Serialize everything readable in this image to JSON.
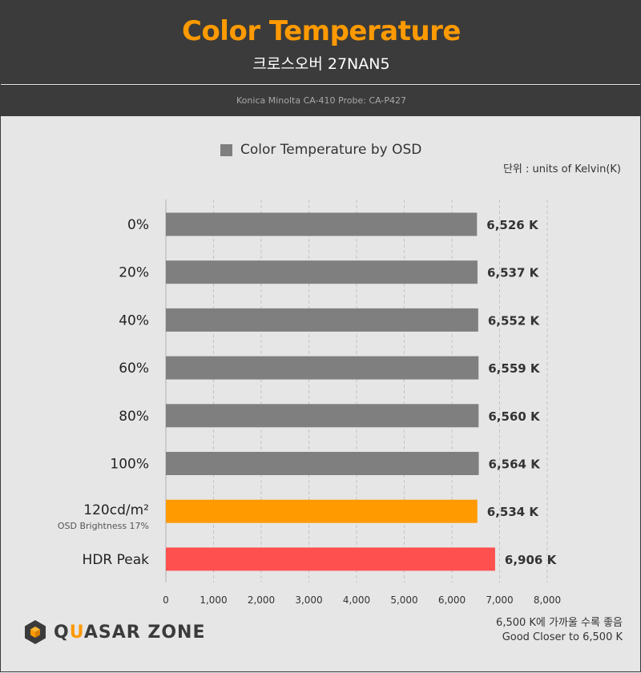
{
  "header": {
    "title": "Color Temperature",
    "subtitle": "크로스오버 27NAN5",
    "probe": "Konica Minolta CA-410 Probe: CA-P427"
  },
  "legend_label": "Color Temperature by OSD",
  "unit_label": "단위 : units of Kelvin(K)",
  "footnote": {
    "line1": "6,500 K에 가까울 수록 좋음",
    "line2": "Good Closer to 6,500 K"
  },
  "logo": {
    "part1": "Q",
    "accent": "U",
    "part2": "ASAR ZONE",
    "icon": "quasarzone-cube-icon"
  },
  "colors": {
    "gray": "#7f7f7f",
    "orange": "#ff9a00",
    "red": "#ff5050",
    "title": "#ff9a00"
  },
  "chart_data": {
    "type": "bar",
    "orientation": "horizontal",
    "title": "Color Temperature",
    "categories": [
      "0%",
      "20%",
      "40%",
      "60%",
      "80%",
      "100%",
      "120cd/m²",
      "HDR Peak"
    ],
    "category_sublabels": [
      "",
      "",
      "",
      "",
      "",
      "",
      "OSD Brightness 17%",
      ""
    ],
    "series": [
      {
        "name": "Color Temperature by OSD",
        "values": [
          6526,
          6537,
          6552,
          6559,
          6560,
          6564,
          6534,
          6906
        ],
        "value_labels": [
          "6,526 K",
          "6,537 K",
          "6,552 K",
          "6,559 K",
          "6,560 K",
          "6,564 K",
          "6,534 K",
          "6,906 K"
        ],
        "bar_colors": [
          "#7f7f7f",
          "#7f7f7f",
          "#7f7f7f",
          "#7f7f7f",
          "#7f7f7f",
          "#7f7f7f",
          "#ff9a00",
          "#ff5050"
        ]
      }
    ],
    "xlim": [
      0,
      8000
    ],
    "xticks": [
      0,
      1000,
      2000,
      3000,
      4000,
      5000,
      6000,
      7000,
      8000
    ],
    "xtick_labels": [
      "0",
      "1,000",
      "2,000",
      "3,000",
      "4,000",
      "5,000",
      "6,000",
      "7,000",
      "8,000"
    ],
    "grid": "vertical-dashed",
    "legend": "top-center"
  }
}
